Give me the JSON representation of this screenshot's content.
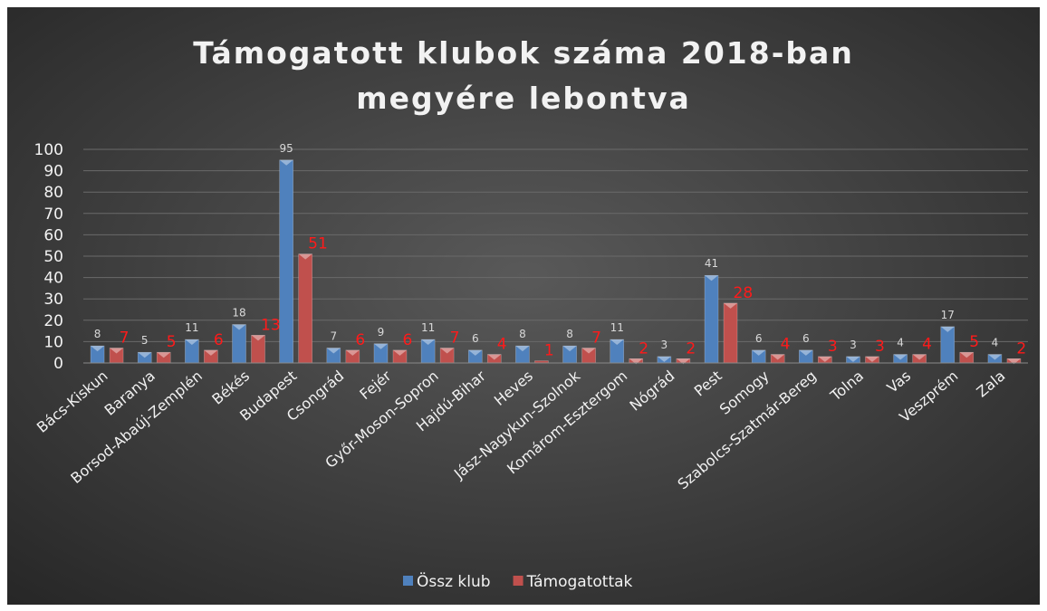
{
  "chart_data": {
    "type": "bar",
    "title": "Támogatott klubok száma 2018-ban megyére lebontva",
    "categories": [
      "Bács-Kiskun",
      "Baranya",
      "Borsod-Abaúj-Zemplén",
      "Békés",
      "Budapest",
      "Csongrád",
      "Fejér",
      "Győr-Moson-Sopron",
      "Hajdú-Bihar",
      "Heves",
      "Jász-Nagykun-Szolnok",
      "Komárom-Esztergom",
      "Nógrád",
      "Pest",
      "Somogy",
      "Szabolcs-Szatmár-Bereg",
      "Tolna",
      "Vas",
      "Veszprém",
      "Zala"
    ],
    "series": [
      {
        "name": "Össz klub",
        "color": "#4f81bd",
        "values": [
          8,
          5,
          11,
          18,
          95,
          7,
          9,
          11,
          6,
          8,
          8,
          11,
          3,
          41,
          6,
          6,
          3,
          4,
          17,
          4
        ]
      },
      {
        "name": "Támogatottak",
        "color": "#c0504d",
        "values": [
          7,
          5,
          6,
          13,
          51,
          6,
          6,
          7,
          4,
          1,
          7,
          2,
          2,
          28,
          4,
          3,
          3,
          4,
          5,
          2
        ]
      }
    ],
    "ylim": [
      0,
      100
    ],
    "yticks": [
      0,
      10,
      20,
      30,
      40,
      50,
      60,
      70,
      80,
      90,
      100
    ],
    "grid": true,
    "legend": "bottom"
  }
}
